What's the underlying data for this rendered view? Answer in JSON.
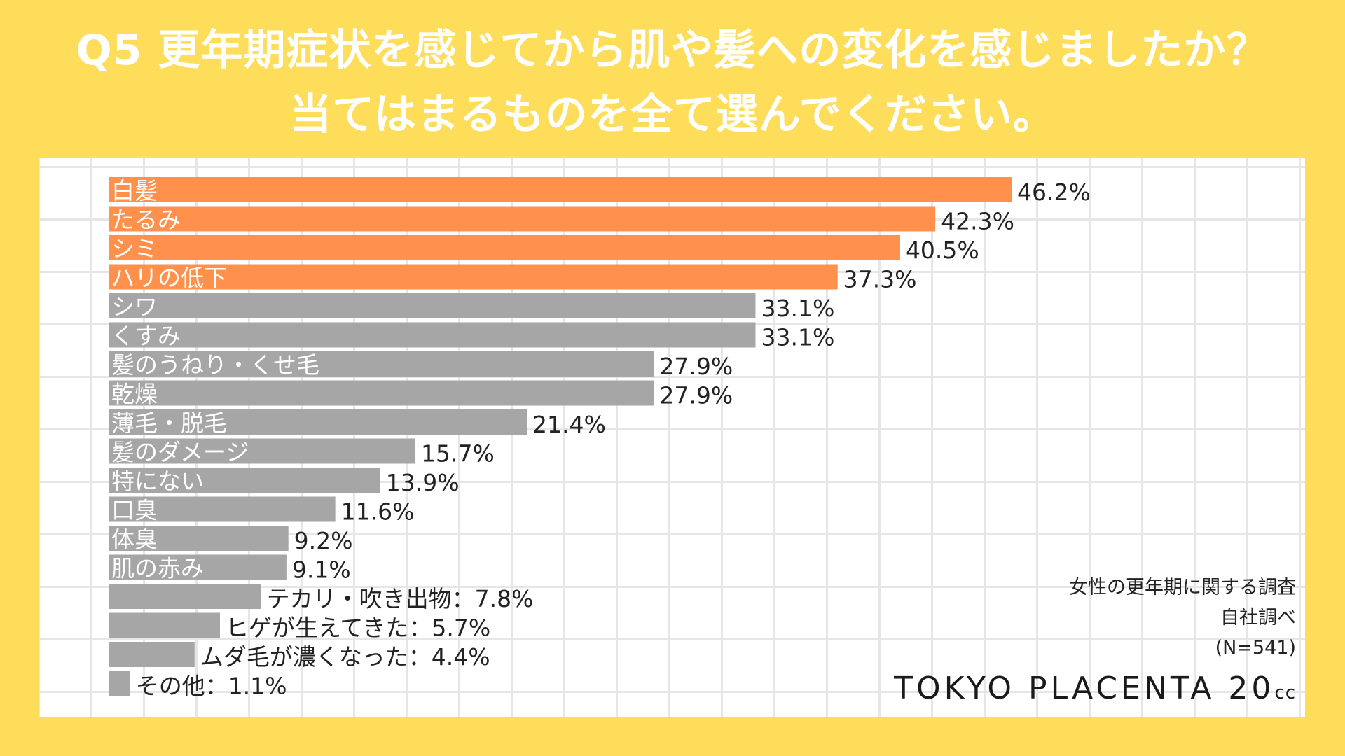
{
  "title": {
    "line1": "Q5  更年期症状を感じてから肌や髪への変化を感じましたか？",
    "line2": "当てはまるものを全て選んでください。"
  },
  "colors": {
    "background": "#FEDD5B",
    "highlight_bar": "#FF914D",
    "normal_bar": "#A6A6A6",
    "grid": "#E6E6E6"
  },
  "chart_data": {
    "type": "bar",
    "orientation": "horizontal",
    "title": "Q5 更年期症状を感じてから肌や髪への変化を感じましたか？当てはまるものを全て選んでください。",
    "xlim": [
      0,
      50
    ],
    "unit": "%",
    "grid": true,
    "categories": [
      "白髪",
      "たるみ",
      "シミ",
      "ハリの低下",
      "シワ",
      "くすみ",
      "髪のうねり・くせ毛",
      "乾燥",
      "薄毛・脱毛",
      "髪のダメージ",
      "特にない",
      "口臭",
      "体臭",
      "肌の赤み",
      "テカリ・吹き出物",
      "ヒゲが生えてきた",
      "ムダ毛が濃くなった",
      "その他"
    ],
    "values": [
      46.2,
      42.3,
      40.5,
      37.3,
      33.1,
      33.1,
      27.9,
      27.9,
      21.4,
      15.7,
      13.9,
      11.6,
      9.2,
      9.1,
      7.8,
      5.7,
      4.4,
      1.1
    ],
    "value_labels": [
      "46.2%",
      "42.3%",
      "40.5%",
      "37.3%",
      "33.1%",
      "33.1%",
      "27.9%",
      "27.9%",
      "21.4%",
      "15.7%",
      "13.9%",
      "11.6%",
      "9.2%",
      "9.1%",
      "テカリ・吹き出物：7.8%",
      "ヒゲが生えてきた：5.7%",
      "ムダ毛が濃くなった：4.4%",
      "その他：1.1%"
    ],
    "highlighted_count": 4
  },
  "notes": {
    "source_1": "女性の更年期に関する調査",
    "source_2": "自社調べ",
    "sample_size": "(N=541)"
  },
  "brand": {
    "name": "TOKYO PLACENTA 20",
    "suffix": "cc"
  }
}
